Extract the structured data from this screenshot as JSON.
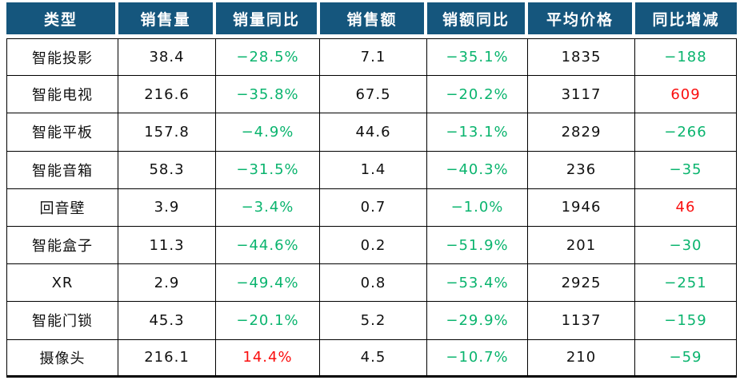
{
  "colors": {
    "header_bg": "#15567D",
    "header_text": "#FFFFFF",
    "negative_green": "#0AB46E",
    "positive_red": "#FA0F0F",
    "body_text": "#111111",
    "border": "#000000"
  },
  "chart_data": {
    "type": "table",
    "title": "",
    "columns": [
      {
        "label": "类型",
        "kind": "text"
      },
      {
        "label": "销售量",
        "kind": "number"
      },
      {
        "label": "销量同比",
        "kind": "signed"
      },
      {
        "label": "销售额",
        "kind": "number"
      },
      {
        "label": "销额同比",
        "kind": "signed"
      },
      {
        "label": "平均价格",
        "kind": "number"
      },
      {
        "label": "同比增减",
        "kind": "signed"
      }
    ],
    "rows": [
      [
        "智能投影",
        "38.4",
        "−28.5%",
        "7.1",
        "−35.1%",
        "1835",
        "−188"
      ],
      [
        "智能电视",
        "216.6",
        "−35.8%",
        "67.5",
        "−20.2%",
        "3117",
        "609"
      ],
      [
        "智能平板",
        "157.8",
        "−4.9%",
        "44.6",
        "−13.1%",
        "2829",
        "−266"
      ],
      [
        "智能音箱",
        "58.3",
        "−31.5%",
        "1.4",
        "−40.3%",
        "236",
        "−35"
      ],
      [
        "回音壁",
        "3.9",
        "−3.4%",
        "0.7",
        "−1.0%",
        "1946",
        "46"
      ],
      [
        "智能盒子",
        "11.3",
        "−44.6%",
        "0.2",
        "−51.9%",
        "201",
        "−30"
      ],
      [
        "XR",
        "2.9",
        "−49.4%",
        "0.8",
        "−53.4%",
        "2925",
        "−251"
      ],
      [
        "智能门锁",
        "45.3",
        "−20.1%",
        "5.2",
        "−29.9%",
        "1137",
        "−159"
      ],
      [
        "摄像头",
        "216.1",
        "14.4%",
        "4.5",
        "−10.7%",
        "210",
        "−59"
      ]
    ]
  }
}
